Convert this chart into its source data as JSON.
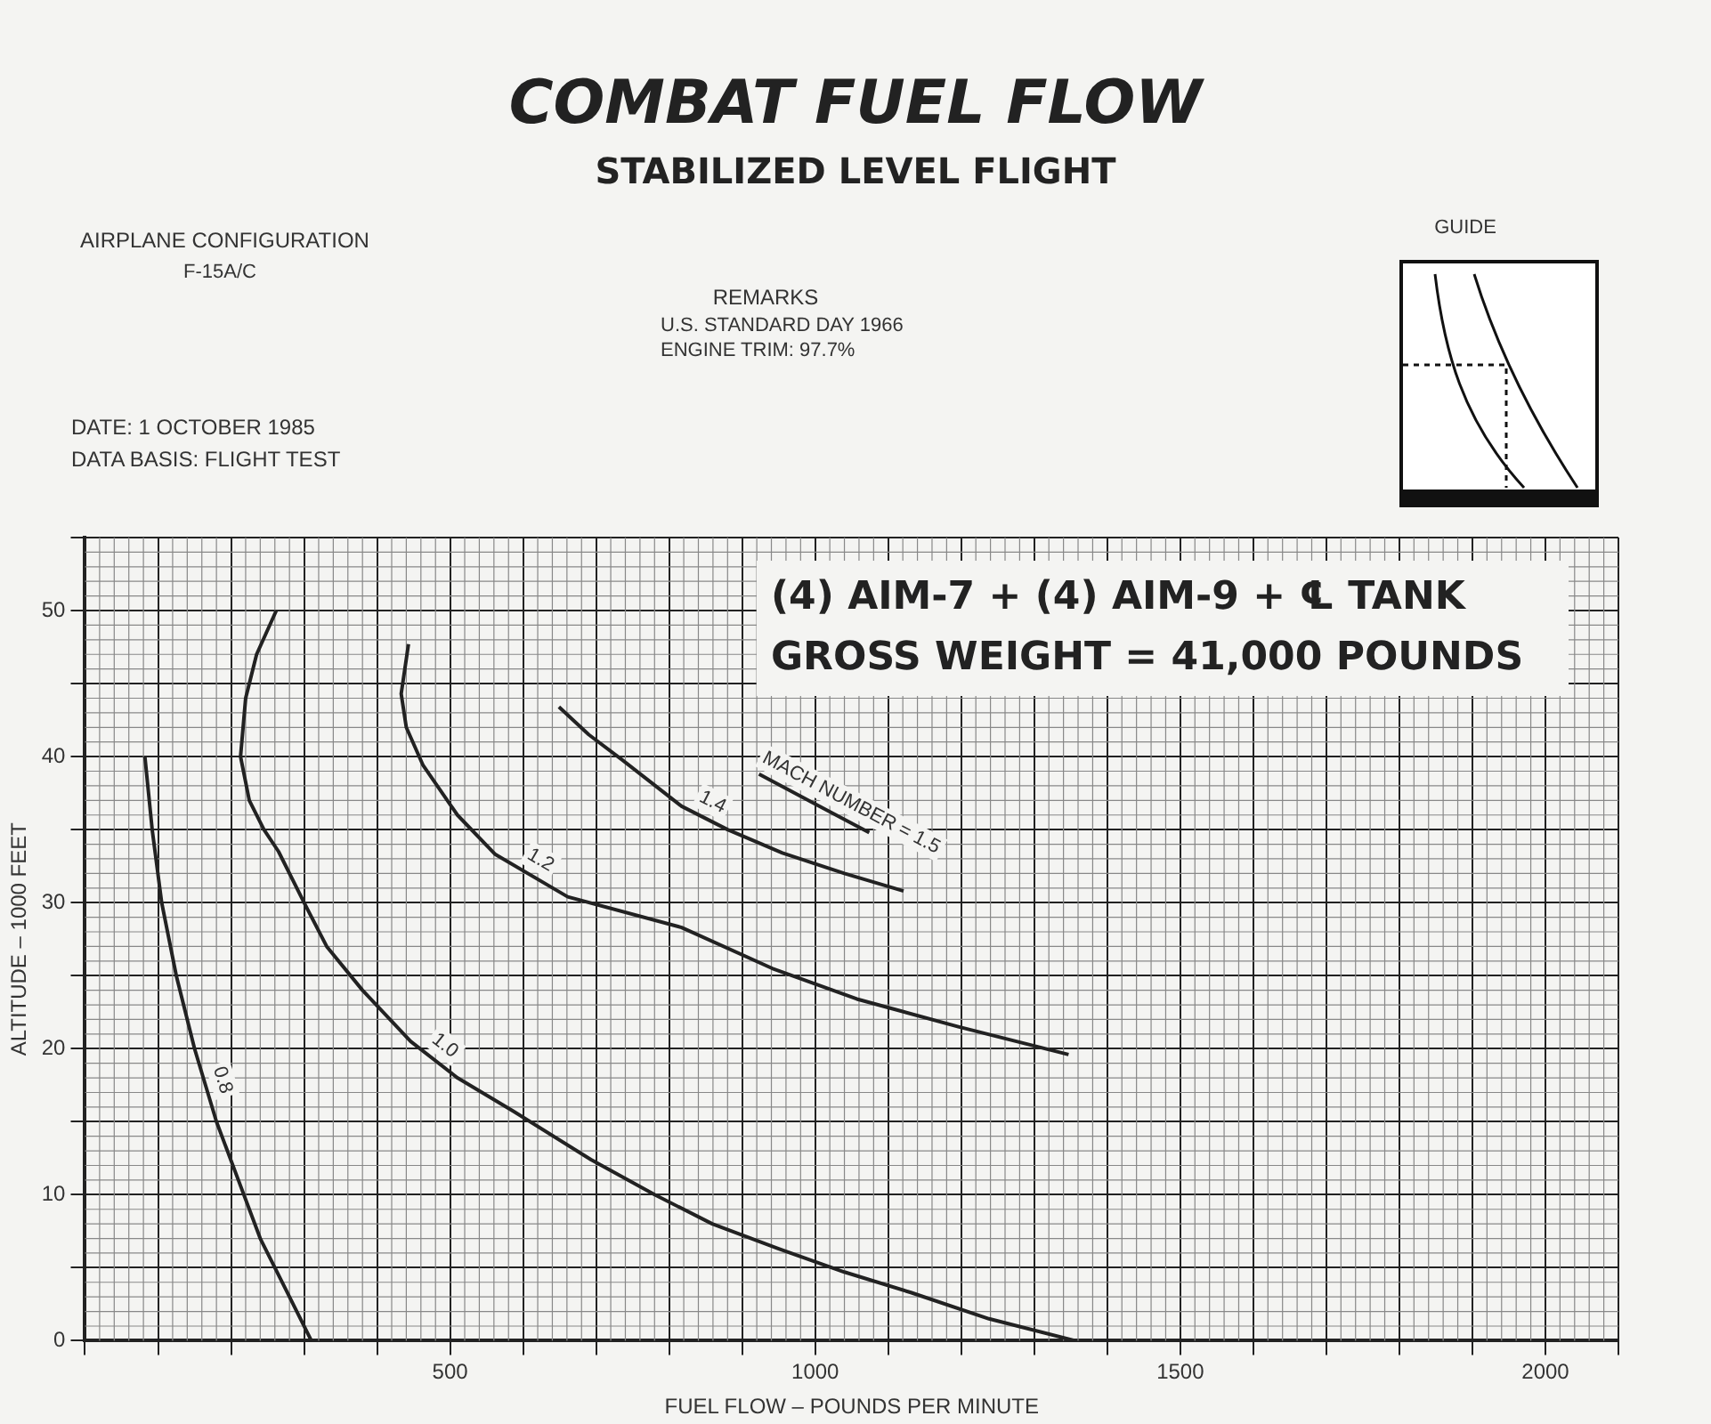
{
  "chart_data": {
    "type": "line",
    "title": "COMBAT FUEL FLOW",
    "subtitle": "STABILIZED LEVEL FLIGHT",
    "xlabel": "FUEL FLOW – POUNDS PER MINUTE",
    "ylabel": "ALTITUDE – 1000 FEET",
    "annotations": [
      "AIRPLANE CONFIGURATION",
      "F-15A/C",
      "DATE:  1 OCTOBER 1985",
      "DATA BASIS:  FLIGHT TEST",
      "REMARKS",
      "U.S. STANDARD DAY 1966",
      "ENGINE TRIM:  97.7%",
      "GUIDE",
      "(4) AIM-7 + (4) AIM-9 + ℄ TANK",
      "GROSS WEIGHT = 41,000 POUNDS"
    ],
    "series": [
      {
        "name": "0.8",
        "color": "#222222",
        "x": [
          82,
          92,
          105,
          125,
          150,
          180,
          210,
          240,
          275,
          310
        ],
        "values": [
          40,
          35,
          30,
          25,
          20,
          15,
          11,
          7,
          3.5,
          0
        ]
      },
      {
        "name": "1.0",
        "color": "#222222",
        "x": [
          262,
          235,
          220,
          213,
          225,
          245,
          265,
          300,
          331,
          380,
          446,
          510,
          587,
          693,
          780,
          859,
          950,
          1040,
          1131,
          1238,
          1356
        ],
        "values": [
          50,
          47,
          44,
          40,
          37,
          35,
          33.5,
          30,
          27,
          24,
          20.5,
          18,
          15.7,
          12.4,
          10,
          8,
          6.3,
          4.7,
          3.3,
          1.5,
          0
        ]
      },
      {
        "name": "1.2",
        "color": "#222222",
        "x": [
          443,
          433,
          440,
          463,
          510,
          562,
          661,
          817,
          941,
          1057,
          1196,
          1347
        ],
        "values": [
          47.7,
          44.3,
          42,
          39.4,
          36,
          33.3,
          30.4,
          28.3,
          25.5,
          23.4,
          21.5,
          19.6
        ]
      },
      {
        "name": "1.4",
        "color": "#222222",
        "x": [
          649,
          690,
          735,
          817,
          880,
          955,
          1040,
          1121
        ],
        "values": [
          43.4,
          41.5,
          39.8,
          36.6,
          35,
          33.4,
          32,
          30.8
        ]
      },
      {
        "name": "MACH NUMBER = 1.5",
        "color": "#222222",
        "x": [
          923,
          1002,
          1074
        ],
        "values": [
          38.8,
          36.7,
          34.8
        ]
      }
    ],
    "xlim": [
      0,
      2100
    ],
    "xticks": [
      {
        "value": 0,
        "label": null
      },
      {
        "value": 100,
        "label": null
      },
      {
        "value": 200,
        "label": null
      },
      {
        "value": 300,
        "label": null
      },
      {
        "value": 400,
        "label": null
      },
      500,
      {
        "value": 600,
        "label": null
      },
      {
        "value": 700,
        "label": null
      },
      {
        "value": 800,
        "label": null
      },
      {
        "value": 900,
        "label": null
      },
      1000,
      {
        "value": 1100,
        "label": null
      },
      {
        "value": 1200,
        "label": null
      },
      {
        "value": 1300,
        "label": null
      },
      {
        "value": 1400,
        "label": null
      },
      1500,
      {
        "value": 1600,
        "label": null
      },
      {
        "value": 1700,
        "label": null
      },
      {
        "value": 1800,
        "label": null
      },
      {
        "value": 1900,
        "label": null
      },
      2000,
      {
        "value": 2100,
        "label": null
      }
    ],
    "ylim": [
      0,
      55
    ],
    "yticks": [
      0,
      {
        "value": 5,
        "label": null
      },
      10,
      {
        "value": 15,
        "label": null
      },
      20,
      {
        "value": 25,
        "label": null
      },
      30,
      {
        "value": 35,
        "label": null
      },
      40,
      {
        "value": 45,
        "label": null
      },
      50,
      {
        "value": 55,
        "label": null
      }
    ],
    "grid": true,
    "legend": false,
    "marker": "none",
    "line_style": "solid"
  }
}
